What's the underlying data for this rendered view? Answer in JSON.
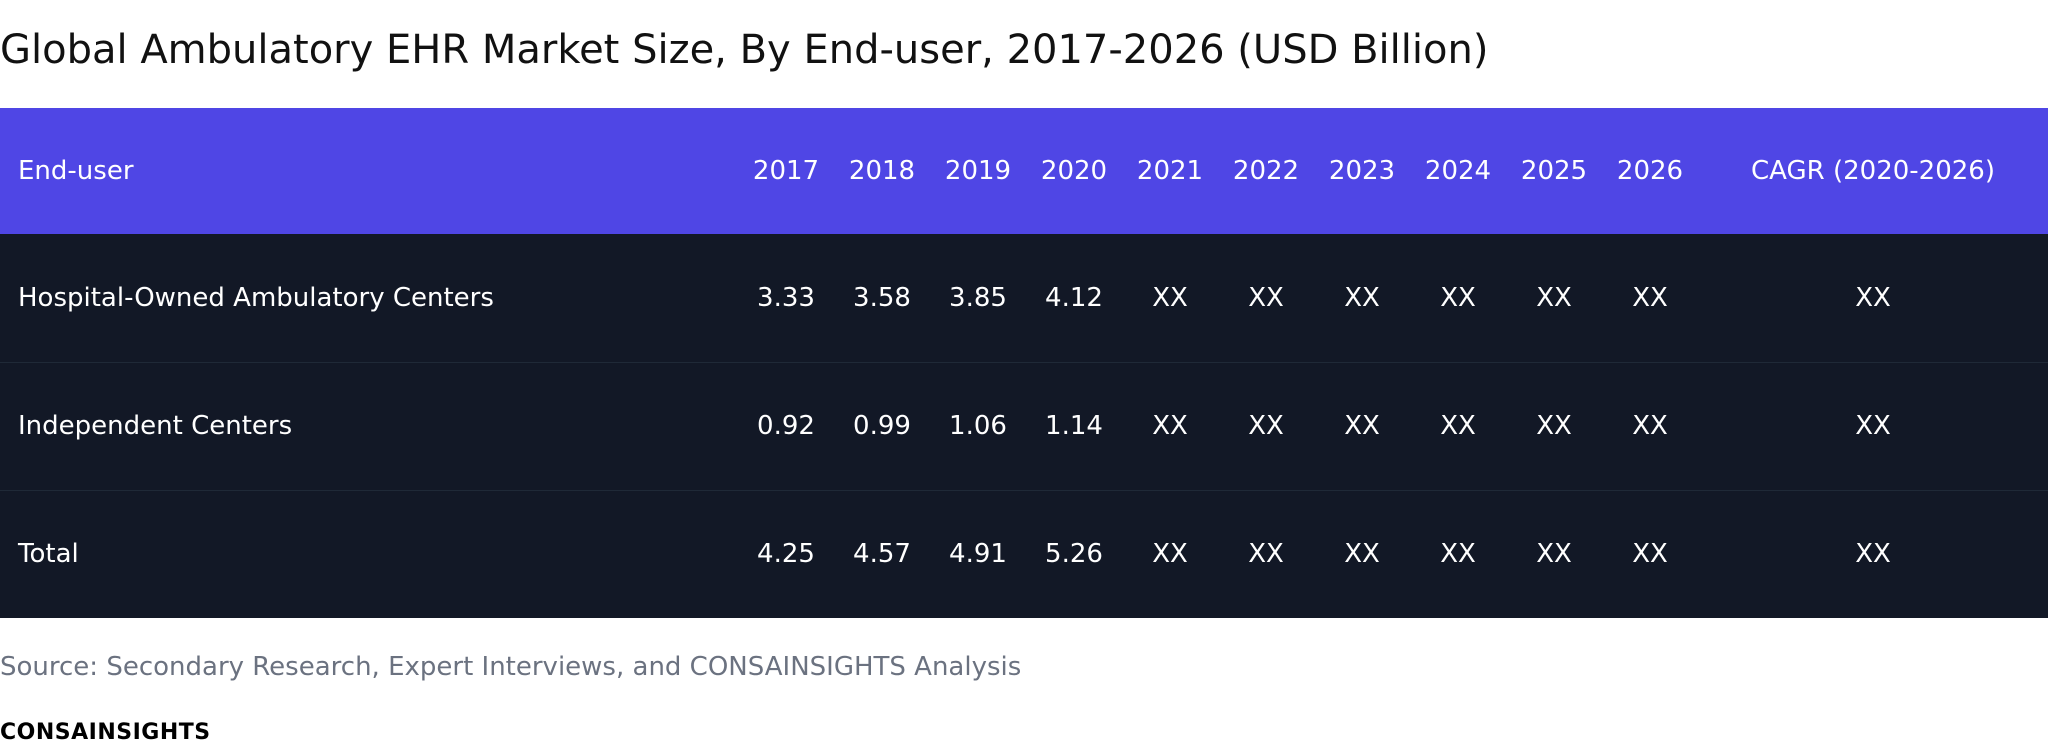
{
  "title": "Global Ambulatory EHR Market Size, By End-user, 2017-2026 (USD Billion)",
  "colors": {
    "header_bg": "#4f46e5",
    "row_bg": "#121826",
    "header_text": "#ffffff",
    "source_text": "#6b7280"
  },
  "table": {
    "headers": [
      "End-user",
      "2017",
      "2018",
      "2019",
      "2020",
      "2021",
      "2022",
      "2023",
      "2024",
      "2025",
      "2026",
      "CAGR (2020-2026)"
    ],
    "rows": [
      [
        "Hospital-Owned Ambulatory Centers",
        "3.33",
        "3.58",
        "3.85",
        "4.12",
        "XX",
        "XX",
        "XX",
        "XX",
        "XX",
        "XX",
        "XX"
      ],
      [
        "Independent Centers",
        "0.92",
        "0.99",
        "1.06",
        "1.14",
        "XX",
        "XX",
        "XX",
        "XX",
        "XX",
        "XX",
        "XX"
      ],
      [
        "Total",
        "4.25",
        "4.57",
        "4.91",
        "5.26",
        "XX",
        "XX",
        "XX",
        "XX",
        "XX",
        "XX",
        "XX"
      ]
    ]
  },
  "source": "Source: Secondary Research, Expert Interviews, and CONSAINSIGHTS Analysis",
  "brand": "CONSAINSIGHTS"
}
